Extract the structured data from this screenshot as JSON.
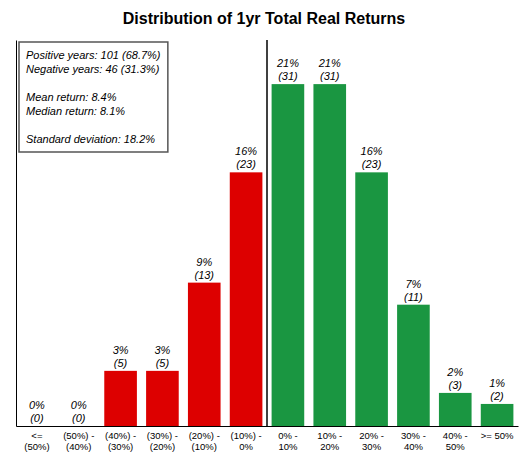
{
  "chart_data": {
    "type": "bar",
    "title": "Distribution of 1yr Total Real Returns",
    "categories": [
      "<=\n(50%)",
      "(50%) -\n(40%)",
      "(40%) -\n(30%)",
      "(30%) -\n(20%)",
      "(20%) -\n(10%)",
      "(10%) -\n0%",
      "0% -\n10%",
      "10% -\n20%",
      "20% -\n30%",
      "30% -\n40%",
      "40% -\n50%",
      ">= 50%"
    ],
    "values": [
      0,
      0,
      5,
      5,
      13,
      23,
      31,
      31,
      23,
      11,
      3,
      2
    ],
    "value_labels": [
      "0%\n(0)",
      "0%\n(0)",
      "3%\n(5)",
      "3%\n(5)",
      "9%\n(13)",
      "16%\n(23)",
      "21%\n(31)",
      "21%\n(31)",
      "16%\n(23)",
      "7%\n(11)",
      "2%\n(3)",
      "1%\n(2)"
    ],
    "colors": [
      "#dd0000",
      "#dd0000",
      "#dd0000",
      "#dd0000",
      "#dd0000",
      "#dd0000",
      "#1a9641",
      "#1a9641",
      "#1a9641",
      "#1a9641",
      "#1a9641",
      "#1a9641"
    ],
    "data_labels": true,
    "ylim": [
      0,
      35
    ],
    "tick_labels": "x",
    "grid": false,
    "annotations": [
      "Positive years: 101 (68.7%)\nNegative years: 46 (31.3%)\n\nMean return: 8.4%\nMedian return: 8.1%\n\nStandard deviation: 18.2%"
    ]
  }
}
